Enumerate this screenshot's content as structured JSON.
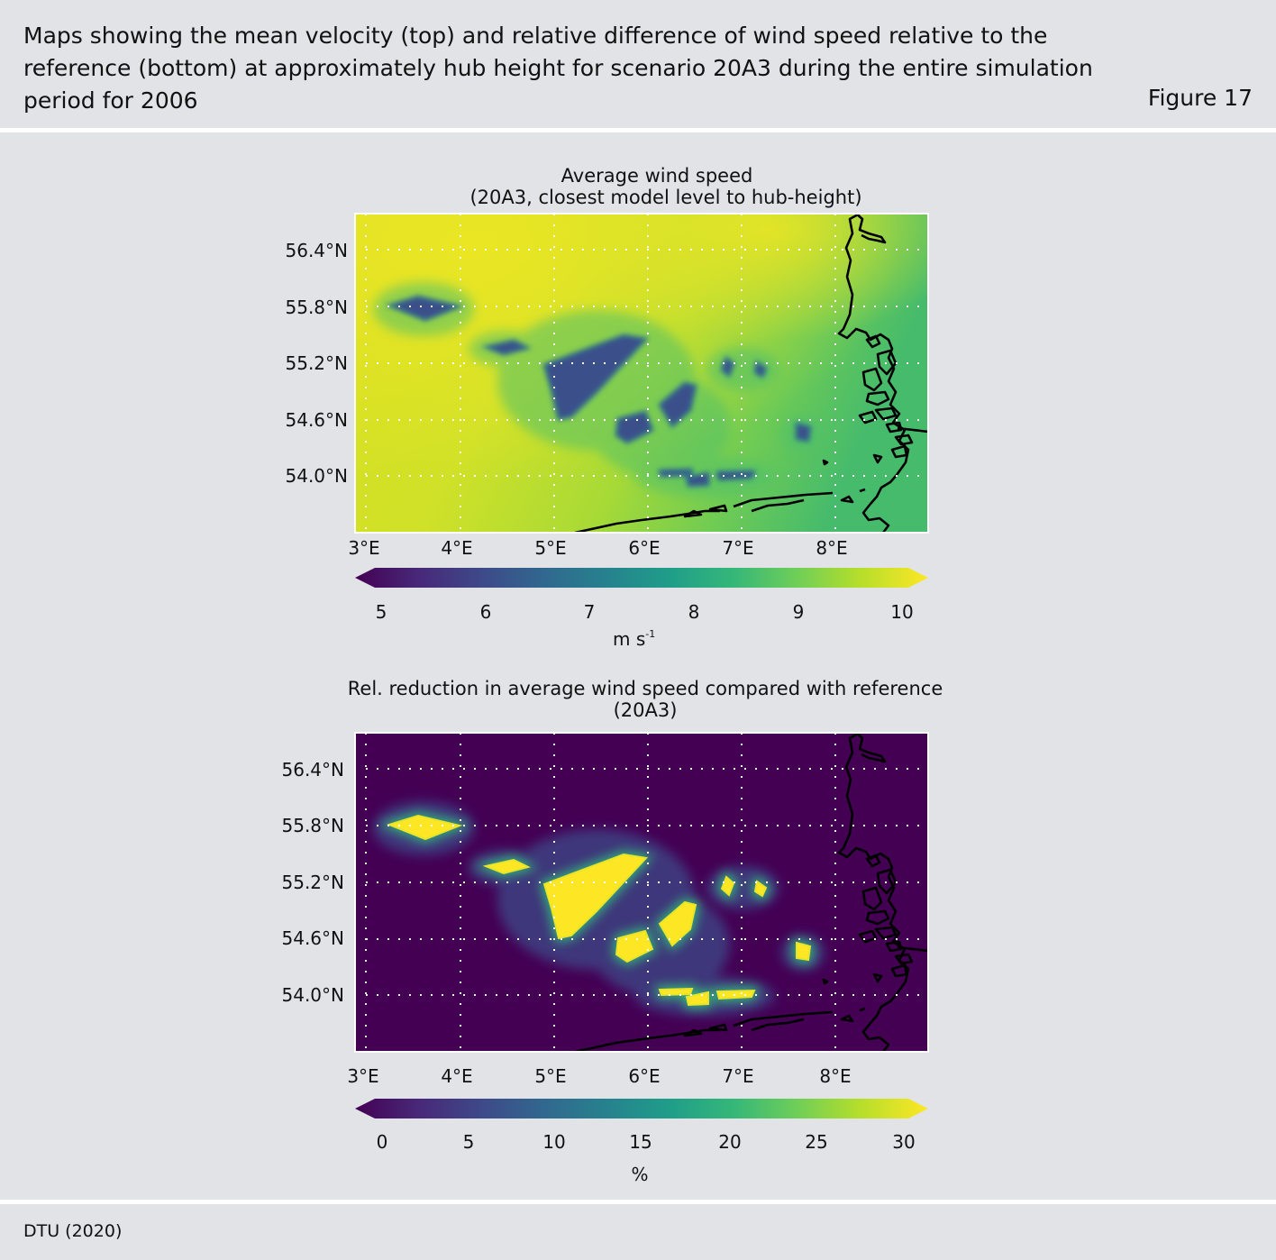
{
  "header": {
    "caption": "Maps showing the mean velocity (top) and relative difference of wind speed relative to the reference (bottom) at approximately hub height for scenario 20A3 during the entire simulation period for 2006",
    "figure_label": "Figure 17"
  },
  "footer": {
    "source": "DTU (2020)"
  },
  "colors": {
    "viridis": [
      "#440154",
      "#482878",
      "#3e4989",
      "#31688e",
      "#26828e",
      "#1f9e89",
      "#35b779",
      "#6ece58",
      "#b5de2b",
      "#fde725"
    ],
    "coastline": "#000000",
    "gridline": "#ffffff"
  },
  "maps": [
    {
      "title_line1": "Average wind speed",
      "title_line2": "(20A3, closest model level to hub-height)",
      "lat_labels": [
        "56.4°N",
        "55.8°N",
        "55.2°N",
        "54.6°N",
        "54.0°N"
      ],
      "lon_labels": [
        "3°E",
        "4°E",
        "5°E",
        "6°E",
        "7°E",
        "8°E"
      ],
      "colorbar": {
        "ticks": [
          "5",
          "6",
          "7",
          "8",
          "9",
          "10"
        ],
        "unit": "m s",
        "unit_sup": "-1",
        "range": [
          5,
          10
        ],
        "extend": "both"
      },
      "field": "wind speed"
    },
    {
      "title_line1": "Rel. reduction in average wind speed compared with reference",
      "title_line2": "(20A3)",
      "lat_labels": [
        "56.4°N",
        "55.8°N",
        "55.2°N",
        "54.6°N",
        "54.0°N"
      ],
      "lon_labels": [
        "3°E",
        "4°E",
        "5°E",
        "6°E",
        "7°E",
        "8°E"
      ],
      "colorbar": {
        "ticks": [
          "0",
          "5",
          "10",
          "15",
          "20",
          "25",
          "30"
        ],
        "unit": "%",
        "unit_sup": "",
        "range": [
          0,
          30
        ],
        "extend": "both"
      },
      "field": "relative reduction"
    }
  ]
}
